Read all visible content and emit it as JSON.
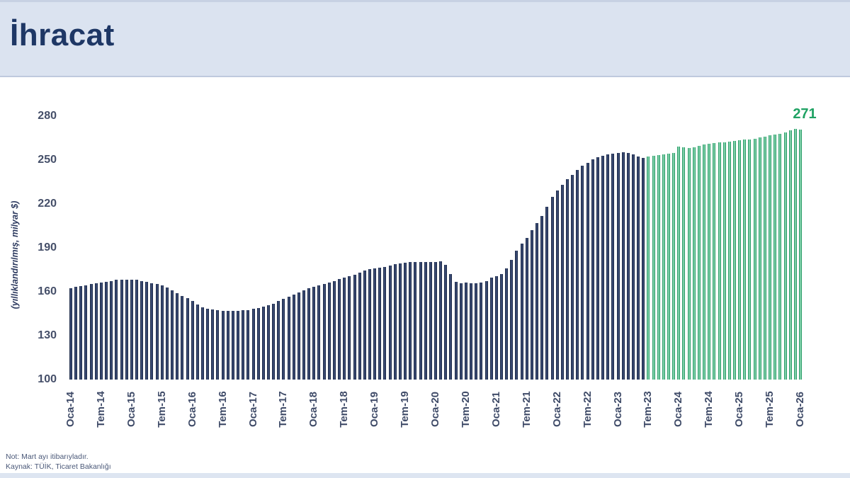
{
  "header": {
    "title": "İhracat"
  },
  "notes": {
    "line1": "Not: Mart ayı itibarıyladır.",
    "line2": "Kaynak: TÜİK, Ticaret Bakanlığı"
  },
  "chart_data": {
    "type": "bar",
    "title": "İhracat",
    "ylabel": "(yıllıklandırılmış, milyar $)",
    "ylim": [
      100,
      280
    ],
    "yticks": [
      100,
      130,
      160,
      190,
      220,
      250,
      280
    ],
    "grid": false,
    "legend": null,
    "start_month": "Oca-14",
    "x_tick_labels": [
      "Oca-14",
      "Tem-14",
      "Oca-15",
      "Tem-15",
      "Oca-16",
      "Tem-16",
      "Oca-17",
      "Tem-17",
      "Oca-18",
      "Tem-18",
      "Oca-19",
      "Tem-19",
      "Oca-20",
      "Tem-20",
      "Oca-21",
      "Tem-21",
      "Oca-22",
      "Tem-22",
      "Oca-23",
      "Tem-23",
      "Oca-24",
      "Tem-24",
      "Oca-25",
      "Tem-25",
      "Oca-26"
    ],
    "tick_every": 6,
    "historical_count": 114,
    "bar_colors": {
      "historical": "#22304f",
      "projection": "#57c28c"
    },
    "last_value_label": "271",
    "last_value_color": "#1fa263",
    "values": [
      162.5,
      163.5,
      164,
      164.5,
      165.5,
      166,
      166.5,
      167,
      167.5,
      168,
      168,
      168,
      168,
      168,
      167.5,
      167,
      166,
      165.5,
      164.5,
      163,
      161,
      159,
      157,
      155.5,
      153.5,
      151.5,
      149.5,
      148.5,
      148,
      147.5,
      147,
      147,
      147,
      147,
      147.5,
      147.5,
      148.5,
      149,
      150,
      151,
      152,
      153.5,
      155,
      156.5,
      158,
      159.5,
      161,
      162.5,
      163.5,
      164.5,
      165.5,
      166.5,
      167.5,
      168.5,
      169.5,
      170.5,
      171.5,
      173,
      174.5,
      175.5,
      176,
      176.5,
      177,
      178,
      179,
      179.5,
      180,
      180.5,
      180.5,
      180.5,
      180.5,
      180.5,
      180.5,
      181,
      178.5,
      172,
      167,
      166,
      166.5,
      166,
      166,
      166.5,
      167.5,
      169.5,
      170.5,
      172,
      176,
      182,
      188,
      193,
      197,
      202,
      207,
      212,
      218,
      225,
      229,
      233,
      237,
      240,
      243,
      246,
      248,
      250.5,
      252,
      253,
      254,
      254.5,
      255,
      255.5,
      255,
      254,
      252.5,
      251.5,
      252.5,
      253,
      253.5,
      254,
      254.5,
      255,
      259,
      258.5,
      258,
      258.5,
      259.5,
      260.5,
      261,
      261.5,
      262,
      262,
      262.5,
      263,
      263.5,
      264,
      264,
      264.5,
      265.5,
      266,
      267,
      267.5,
      268,
      269,
      270.5,
      271.5,
      271
    ]
  }
}
